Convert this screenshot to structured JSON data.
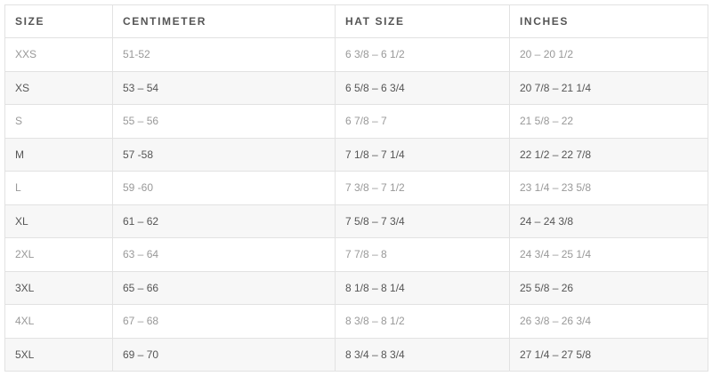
{
  "headers": [
    "SIZE",
    "CENTIMETER",
    "HAT SIZE",
    "INCHES"
  ],
  "rows": [
    [
      "XXS",
      "51-52",
      "6 3/8 – 6 1/2",
      "20 – 20 1/2"
    ],
    [
      "XS",
      "53 – 54",
      "6 5/8 – 6 3/4",
      "20 7/8 – 21 1/4"
    ],
    [
      "S",
      "55 – 56",
      "6 7/8 – 7",
      "21 5/8 – 22"
    ],
    [
      "M",
      "57 -58",
      "7 1/8 – 7 1/4",
      "22 1/2 – 22 7/8"
    ],
    [
      "L",
      "59 -60",
      "7 3/8 – 7 1/2",
      "23 1/4 – 23 5/8"
    ],
    [
      "XL",
      "61 – 62",
      "7 5/8 – 7 3/4",
      "24 – 24 3/8"
    ],
    [
      "2XL",
      "63 – 64",
      "7 7/8 – 8",
      "24 3/4 – 25 1/4"
    ],
    [
      "3XL",
      "65 – 66",
      "8 1/8 – 8 1/4",
      "25 5/8 – 26"
    ],
    [
      "4XL",
      "67 – 68",
      "8 3/8 – 8 1/2",
      "26 3/8 – 26 3/4"
    ],
    [
      "5XL",
      "69 – 70",
      "8 3/4 – 8 3/4",
      "27 1/4 – 27 5/8"
    ]
  ]
}
